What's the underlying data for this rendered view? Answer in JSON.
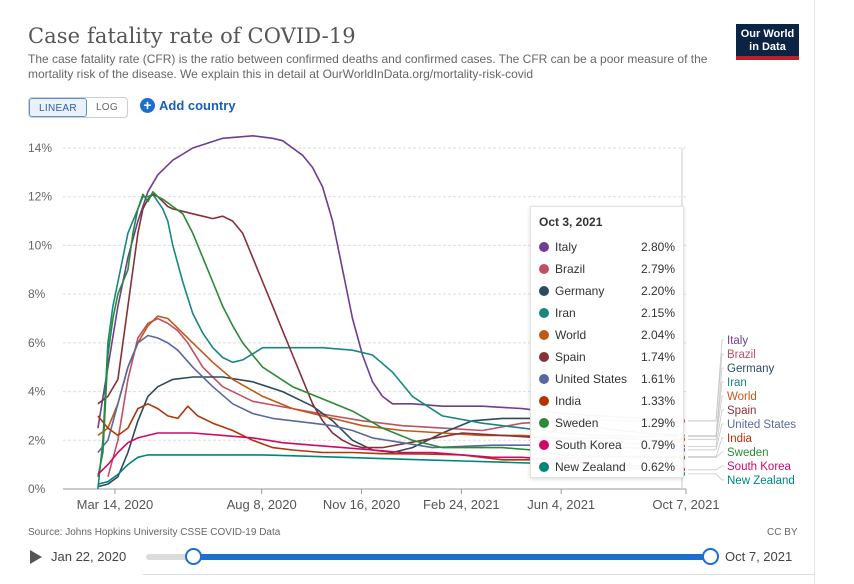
{
  "header": {
    "title": "Case fatality rate of COVID-19",
    "subtitle": "The case fatality rate (CFR) is the ratio between confirmed deaths and confirmed cases. The CFR can be a poor measure of the mortality risk of the disease. We explain this in detail at OurWorldInData.org/mortality-risk-covid",
    "logo_line1": "Our World",
    "logo_line2": "in Data"
  },
  "controls": {
    "linear_label": "LINEAR",
    "log_label": "LOG",
    "add_country_label": "Add country",
    "plus_glyph": "+"
  },
  "footer": {
    "source": "Source: Johns Hopkins University CSSE COVID-19 Data",
    "license": "CC BY"
  },
  "timeline": {
    "start_label": "Jan 22, 2020",
    "end_label": "Oct 7, 2021"
  },
  "tooltip": {
    "date": "Oct 3, 2021",
    "rows": [
      {
        "name": "Italy",
        "value": "2.80%",
        "color": "#6d3e91"
      },
      {
        "name": "Brazil",
        "value": "2.79%",
        "color": "#c15065"
      },
      {
        "name": "Germany",
        "value": "2.20%",
        "color": "#2d4b5e"
      },
      {
        "name": "Iran",
        "value": "2.15%",
        "color": "#18877f"
      },
      {
        "name": "World",
        "value": "2.04%",
        "color": "#c05917"
      },
      {
        "name": "Spain",
        "value": "1.74%",
        "color": "#883039"
      },
      {
        "name": "United States",
        "value": "1.61%",
        "color": "#58699f"
      },
      {
        "name": "India",
        "value": "1.33%",
        "color": "#b13507"
      },
      {
        "name": "Sweden",
        "value": "1.29%",
        "color": "#2a8a36"
      },
      {
        "name": "South Korea",
        "value": "0.79%",
        "color": "#cf0a66"
      },
      {
        "name": "New Zealand",
        "value": "0.62%",
        "color": "#00847e"
      }
    ]
  },
  "chart_data": {
    "type": "line",
    "title": "Case fatality rate of COVID-19",
    "xlabel": "",
    "ylabel": "",
    "ylim": [
      0,
      14
    ],
    "y_ticks": [
      0,
      2,
      4,
      6,
      8,
      10,
      12,
      14
    ],
    "y_tick_labels": [
      "0%",
      "2%",
      "4%",
      "6%",
      "8%",
      "10%",
      "12%",
      "14%"
    ],
    "x_domain_days": [
      0,
      624
    ],
    "x_ticks": [
      {
        "label": "Mar 14, 2020",
        "day": 52
      },
      {
        "label": "Aug 8, 2020",
        "day": 199
      },
      {
        "label": "Nov 16, 2020",
        "day": 299
      },
      {
        "label": "Feb 24, 2021",
        "day": 399
      },
      {
        "label": "Jun 4, 2021",
        "day": 499
      },
      {
        "label": "Oct 7, 2021",
        "day": 624
      }
    ],
    "hover_day": 620,
    "series": [
      {
        "name": "Italy",
        "color": "#6d3e91",
        "x": [
          35,
          45,
          55,
          65,
          75,
          85,
          95,
          110,
          130,
          160,
          190,
          210,
          220,
          230,
          240,
          250,
          260,
          270,
          280,
          290,
          300,
          310,
          320,
          330,
          340,
          350,
          380,
          420,
          460,
          500,
          540,
          580,
          620
        ],
        "y": [
          2.5,
          5.0,
          7.5,
          9.5,
          11.0,
          12.2,
          12.9,
          13.5,
          14.0,
          14.4,
          14.5,
          14.4,
          14.3,
          14.0,
          13.7,
          13.2,
          12.4,
          11.0,
          9.0,
          7.0,
          5.5,
          4.4,
          3.8,
          3.5,
          3.5,
          3.5,
          3.4,
          3.4,
          3.3,
          3.1,
          3.0,
          2.9,
          2.8
        ]
      },
      {
        "name": "Brazil",
        "color": "#c15065",
        "x": [
          45,
          55,
          65,
          75,
          85,
          95,
          105,
          115,
          125,
          140,
          160,
          190,
          230,
          270,
          300,
          340,
          380,
          420,
          460,
          500,
          540,
          580,
          620
        ],
        "y": [
          0.5,
          2.0,
          4.5,
          6.2,
          6.8,
          7.0,
          6.8,
          6.5,
          6.0,
          5.0,
          4.2,
          3.6,
          3.3,
          3.0,
          2.8,
          2.6,
          2.5,
          2.4,
          2.7,
          2.8,
          2.8,
          2.8,
          2.79
        ]
      },
      {
        "name": "Germany",
        "color": "#2d4b5e",
        "x": [
          35,
          45,
          55,
          65,
          75,
          85,
          95,
          110,
          130,
          160,
          190,
          220,
          250,
          270,
          290,
          310,
          330,
          350,
          380,
          410,
          440,
          470,
          500,
          540,
          580,
          620
        ],
        "y": [
          0.1,
          0.2,
          0.5,
          1.5,
          2.8,
          3.8,
          4.2,
          4.5,
          4.6,
          4.6,
          4.4,
          4.0,
          3.4,
          2.8,
          2.0,
          1.6,
          1.5,
          1.7,
          2.3,
          2.8,
          2.9,
          2.9,
          2.7,
          2.5,
          2.3,
          2.2
        ]
      },
      {
        "name": "Iran",
        "color": "#18877f",
        "x": [
          35,
          40,
          45,
          50,
          55,
          60,
          65,
          70,
          75,
          80,
          85,
          90,
          95,
          100,
          105,
          110,
          120,
          130,
          140,
          150,
          160,
          170,
          180,
          200,
          230,
          260,
          290,
          310,
          330,
          350,
          380,
          420,
          460,
          500,
          540,
          580,
          620
        ],
        "y": [
          0,
          2.0,
          6.0,
          7.5,
          8.5,
          9.5,
          10.5,
          11.0,
          11.5,
          12.0,
          12.0,
          12.1,
          11.8,
          11.5,
          11.0,
          10.0,
          8.5,
          7.2,
          6.4,
          5.8,
          5.4,
          5.2,
          5.3,
          5.8,
          5.8,
          5.8,
          5.7,
          5.5,
          4.8,
          3.8,
          3.0,
          2.7,
          2.5,
          2.3,
          2.2,
          2.15,
          2.15
        ]
      },
      {
        "name": "World",
        "color": "#c05917",
        "x": [
          35,
          45,
          55,
          65,
          75,
          85,
          95,
          105,
          115,
          130,
          150,
          170,
          200,
          230,
          270,
          300,
          340,
          380,
          420,
          460,
          500,
          540,
          580,
          620
        ],
        "y": [
          2.2,
          2.5,
          3.5,
          5.0,
          6.0,
          6.7,
          7.1,
          7.0,
          6.6,
          6.0,
          5.2,
          4.5,
          3.8,
          3.3,
          2.9,
          2.6,
          2.4,
          2.3,
          2.2,
          2.2,
          2.1,
          2.1,
          2.05,
          2.04
        ]
      },
      {
        "name": "Spain",
        "color": "#883039",
        "x": [
          35,
          45,
          55,
          60,
          65,
          70,
          75,
          80,
          85,
          90,
          95,
          100,
          105,
          110,
          120,
          130,
          140,
          150,
          160,
          170,
          180,
          190,
          200,
          210,
          220,
          230,
          240,
          250,
          260,
          270,
          280,
          290,
          300,
          320,
          360,
          400,
          440,
          480,
          520,
          560,
          600,
          620
        ],
        "y": [
          3.5,
          3.8,
          4.5,
          6.0,
          7.5,
          9.0,
          10.5,
          11.5,
          11.9,
          12.1,
          12.0,
          11.8,
          11.6,
          11.5,
          11.4,
          11.3,
          11.2,
          11.1,
          11.2,
          11.0,
          10.5,
          9.5,
          8.5,
          7.5,
          6.5,
          5.5,
          4.5,
          3.5,
          2.8,
          2.3,
          2.0,
          1.8,
          1.7,
          1.7,
          2.0,
          2.3,
          2.2,
          2.1,
          2.0,
          1.9,
          1.8,
          1.74
        ]
      },
      {
        "name": "United States",
        "color": "#58699f",
        "x": [
          35,
          45,
          55,
          65,
          75,
          85,
          95,
          105,
          115,
          130,
          150,
          170,
          190,
          210,
          230,
          250,
          270,
          290,
          310,
          340,
          370,
          400,
          430,
          460,
          490,
          520,
          560,
          600,
          620
        ],
        "y": [
          1.5,
          2.0,
          3.5,
          5.0,
          6.0,
          6.3,
          6.2,
          6.0,
          5.7,
          5.0,
          4.2,
          3.5,
          3.1,
          2.9,
          2.8,
          2.7,
          2.6,
          2.4,
          2.1,
          1.9,
          1.7,
          1.75,
          1.8,
          1.8,
          1.8,
          1.75,
          1.7,
          1.65,
          1.61
        ]
      },
      {
        "name": "India",
        "color": "#b13507",
        "x": [
          35,
          45,
          55,
          65,
          75,
          85,
          95,
          105,
          115,
          125,
          135,
          150,
          170,
          190,
          210,
          230,
          260,
          290,
          320,
          360,
          400,
          440,
          480,
          520,
          560,
          600,
          620
        ],
        "y": [
          3.0,
          2.5,
          2.2,
          2.5,
          3.3,
          3.5,
          3.3,
          3.0,
          2.9,
          3.4,
          3.0,
          2.7,
          2.4,
          2.0,
          1.7,
          1.6,
          1.5,
          1.5,
          1.45,
          1.44,
          1.4,
          1.2,
          1.2,
          1.3,
          1.33,
          1.33,
          1.33
        ]
      },
      {
        "name": "Sweden",
        "color": "#2a8a36",
        "x": [
          35,
          40,
          45,
          50,
          55,
          60,
          65,
          70,
          75,
          80,
          85,
          90,
          95,
          100,
          110,
          120,
          130,
          140,
          150,
          160,
          170,
          180,
          200,
          230,
          260,
          290,
          320,
          350,
          380,
          410,
          440,
          470,
          500,
          540,
          580,
          620
        ],
        "y": [
          0.5,
          1.5,
          5.5,
          7.0,
          8.0,
          8.5,
          9.0,
          10.5,
          11.5,
          12.1,
          11.8,
          12.2,
          12.0,
          11.9,
          11.6,
          11.3,
          10.5,
          9.5,
          8.5,
          7.5,
          6.7,
          6.0,
          5.0,
          4.2,
          3.7,
          3.2,
          2.5,
          2.0,
          1.7,
          1.7,
          1.7,
          1.6,
          1.4,
          1.35,
          1.3,
          1.29
        ]
      },
      {
        "name": "South Korea",
        "color": "#cf0a66",
        "x": [
          35,
          45,
          55,
          65,
          75,
          85,
          95,
          110,
          130,
          160,
          190,
          220,
          250,
          280,
          310,
          340,
          370,
          400,
          430,
          460,
          490,
          520,
          560,
          600,
          620
        ],
        "y": [
          0.6,
          1.0,
          1.5,
          1.9,
          2.1,
          2.2,
          2.3,
          2.3,
          2.3,
          2.2,
          2.1,
          1.9,
          1.8,
          1.7,
          1.6,
          1.5,
          1.5,
          1.4,
          1.3,
          1.3,
          1.2,
          1.1,
          1.0,
          0.85,
          0.79
        ]
      },
      {
        "name": "New Zealand",
        "color": "#00847e",
        "x": [
          35,
          45,
          55,
          65,
          75,
          85,
          95,
          110,
          130,
          160,
          200,
          240,
          280,
          320,
          360,
          400,
          440,
          480,
          520,
          560,
          600,
          620
        ],
        "y": [
          0.2,
          0.3,
          0.6,
          1.0,
          1.3,
          1.4,
          1.4,
          1.4,
          1.4,
          1.4,
          1.4,
          1.35,
          1.3,
          1.25,
          1.2,
          1.15,
          1.1,
          1.05,
          1.0,
          0.9,
          0.7,
          0.62
        ]
      }
    ],
    "label_order": [
      "Italy",
      "Brazil",
      "Germany",
      "Iran",
      "World",
      "Spain",
      "United States",
      "India",
      "Sweden",
      "South Korea",
      "New Zealand"
    ]
  }
}
